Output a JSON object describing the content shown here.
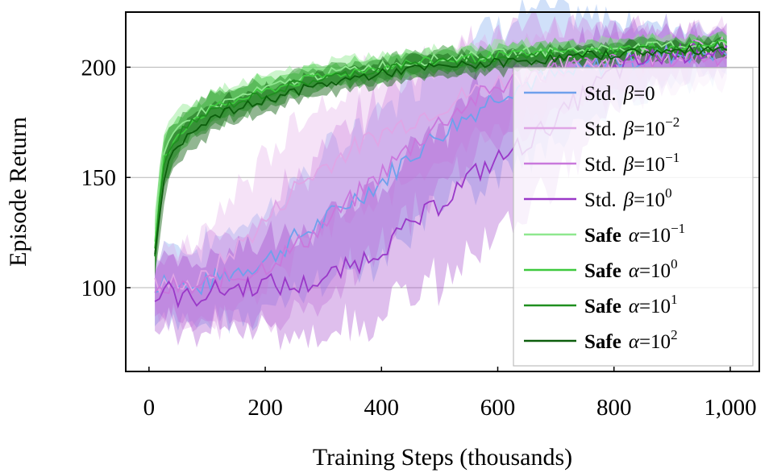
{
  "chart_data": {
    "type": "line",
    "xlabel": "Training Steps (thousands)",
    "ylabel": "Episode Return",
    "xlim": [
      -40,
      1050
    ],
    "ylim": [
      62,
      225
    ],
    "xticks": [
      0,
      200,
      400,
      600,
      800,
      1000
    ],
    "xtick_labels": [
      "0",
      "200",
      "400",
      "600",
      "800",
      "1,000"
    ],
    "yticks": [
      100,
      150,
      200
    ],
    "ytick_labels": [
      "100",
      "150",
      "200"
    ],
    "grid": "horizontal",
    "legend_position": "right",
    "x": [
      10,
      25,
      50,
      75,
      100,
      150,
      200,
      250,
      300,
      350,
      400,
      450,
      500,
      550,
      600,
      650,
      700,
      750,
      800,
      850,
      900,
      950,
      1000
    ],
    "series": [
      {
        "legend_prefix": "Std.",
        "legend_param": "β",
        "legend_value": "=0",
        "legend_sup": "",
        "color": "#6ea0ec",
        "values": [
          98,
          106,
          102,
          98,
          102,
          108,
          112,
          122,
          130,
          140,
          148,
          160,
          170,
          178,
          188,
          193,
          196,
          198,
          203,
          204,
          206,
          207,
          207
        ],
        "band": [
          15,
          16,
          17,
          18,
          18,
          20,
          22,
          26,
          28,
          30,
          32,
          34,
          34,
          34,
          33,
          32,
          28,
          24,
          20,
          16,
          14,
          12,
          10
        ]
      },
      {
        "legend_prefix": "Std.",
        "legend_param": "β",
        "legend_value": "=10",
        "legend_sup": "−2",
        "color": "#dfa6e6",
        "values": [
          102,
          100,
          104,
          101,
          105,
          118,
          130,
          145,
          155,
          163,
          170,
          176,
          182,
          188,
          193,
          197,
          200,
          202,
          204,
          206,
          207,
          208,
          209
        ],
        "band": [
          12,
          14,
          16,
          18,
          20,
          26,
          28,
          30,
          30,
          30,
          28,
          26,
          24,
          22,
          20,
          18,
          16,
          14,
          12,
          11,
          10,
          9,
          8
        ]
      },
      {
        "legend_prefix": "Std.",
        "legend_param": "β",
        "legend_value": "=10",
        "legend_sup": "−1",
        "color": "#c978dc",
        "values": [
          96,
          99,
          100,
          99,
          102,
          105,
          110,
          118,
          128,
          140,
          152,
          164,
          175,
          184,
          191,
          196,
          199,
          201,
          202,
          203,
          204,
          205,
          206
        ],
        "band": [
          12,
          14,
          15,
          16,
          18,
          22,
          26,
          30,
          32,
          34,
          34,
          32,
          30,
          28,
          24,
          22,
          20,
          18,
          16,
          15,
          14,
          13,
          12
        ]
      },
      {
        "legend_prefix": "Std.",
        "legend_param": "β",
        "legend_value": "=10",
        "legend_sup": "0",
        "color": "#9a38c8",
        "values": [
          94,
          100,
          96,
          95,
          98,
          100,
          102,
          100,
          104,
          110,
          118,
          128,
          138,
          150,
          158,
          166,
          176,
          188,
          198,
          203,
          206,
          208,
          209
        ],
        "band": [
          12,
          14,
          15,
          16,
          16,
          18,
          20,
          22,
          24,
          28,
          30,
          32,
          34,
          34,
          34,
          32,
          28,
          24,
          18,
          14,
          12,
          10,
          9
        ]
      },
      {
        "legend_prefix": "Safe",
        "legend_param": "α",
        "legend_value": "=10",
        "legend_sup": "−1",
        "color": "#8fe88f",
        "values": [
          120,
          160,
          172,
          178,
          181,
          186,
          190,
          194,
          197,
          199,
          201,
          202,
          204,
          205,
          206,
          207,
          207,
          208,
          209,
          209,
          210,
          210,
          211
        ],
        "band": [
          12,
          10,
          8,
          7,
          7,
          6,
          6,
          5,
          5,
          5,
          5,
          5,
          5,
          5,
          4,
          4,
          4,
          4,
          4,
          4,
          4,
          4,
          4
        ]
      },
      {
        "legend_prefix": "Safe",
        "legend_param": "α",
        "legend_value": "=10",
        "legend_sup": "0",
        "color": "#3ec93e",
        "values": [
          118,
          158,
          170,
          176,
          180,
          185,
          189,
          193,
          196,
          198,
          200,
          202,
          203,
          204,
          205,
          206,
          207,
          207,
          208,
          209,
          209,
          210,
          211
        ],
        "band": [
          12,
          10,
          8,
          7,
          7,
          6,
          6,
          5,
          5,
          5,
          5,
          5,
          5,
          5,
          4,
          4,
          4,
          4,
          4,
          4,
          4,
          4,
          4
        ]
      },
      {
        "legend_prefix": "Safe",
        "legend_param": "α",
        "legend_value": "=10",
        "legend_sup": "1",
        "color": "#1f8f1f",
        "values": [
          116,
          156,
          169,
          175,
          179,
          184,
          188,
          192,
          195,
          197,
          199,
          201,
          202,
          203,
          204,
          205,
          206,
          206,
          207,
          208,
          208,
          209,
          210
        ],
        "band": [
          12,
          10,
          8,
          7,
          7,
          6,
          6,
          5,
          5,
          5,
          5,
          5,
          5,
          5,
          4,
          4,
          4,
          4,
          4,
          4,
          4,
          4,
          4
        ]
      },
      {
        "legend_prefix": "Safe",
        "legend_param": "α",
        "legend_value": "=10",
        "legend_sup": "2",
        "color": "#0c5e0c",
        "values": [
          114,
          150,
          165,
          172,
          176,
          181,
          185,
          189,
          192,
          195,
          197,
          199,
          200,
          201,
          202,
          203,
          204,
          205,
          206,
          207,
          207,
          208,
          209
        ],
        "band": [
          12,
          10,
          8,
          7,
          7,
          6,
          6,
          5,
          5,
          5,
          5,
          5,
          5,
          5,
          4,
          4,
          4,
          4,
          4,
          4,
          4,
          4,
          4
        ]
      }
    ]
  }
}
